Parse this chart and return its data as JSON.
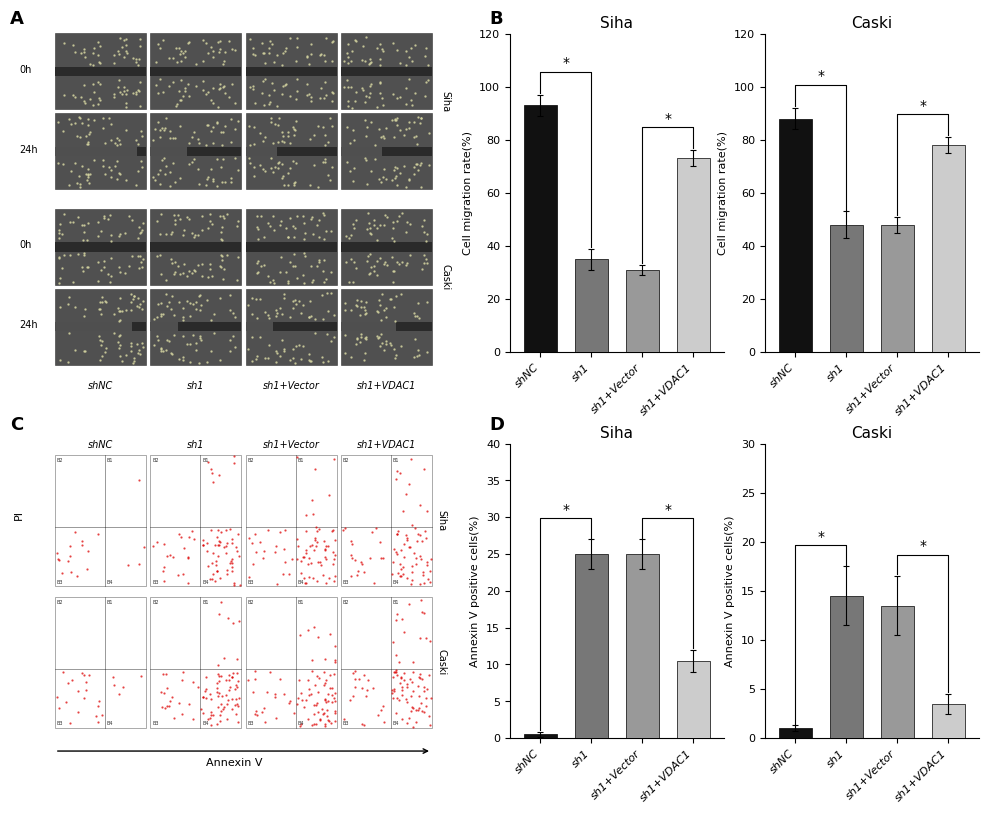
{
  "panel_B_siha": {
    "title": "Siha",
    "categories": [
      "shNC",
      "sh1",
      "sh1+Vector",
      "sh1+VDAC1"
    ],
    "values": [
      93,
      35,
      31,
      73
    ],
    "errors": [
      4,
      4,
      2,
      3
    ],
    "colors": [
      "#111111",
      "#777777",
      "#999999",
      "#cccccc"
    ],
    "ylabel": "Cell migration rate(%)",
    "ylim": [
      0,
      120
    ],
    "yticks": [
      0,
      20,
      40,
      60,
      80,
      100,
      120
    ],
    "sig1": [
      0,
      1
    ],
    "sig2": [
      2,
      3
    ]
  },
  "panel_B_caski": {
    "title": "Caski",
    "categories": [
      "shNC",
      "sh1",
      "sh1+Vector",
      "sh1+VDAC1"
    ],
    "values": [
      88,
      48,
      48,
      78
    ],
    "errors": [
      4,
      5,
      3,
      3
    ],
    "colors": [
      "#111111",
      "#777777",
      "#999999",
      "#cccccc"
    ],
    "ylabel": "Cell migration rate(%)",
    "ylim": [
      0,
      120
    ],
    "yticks": [
      0,
      20,
      40,
      60,
      80,
      100,
      120
    ],
    "sig1": [
      0,
      1
    ],
    "sig2": [
      2,
      3
    ]
  },
  "panel_D_siha": {
    "title": "Siha",
    "categories": [
      "shNC",
      "sh1",
      "sh1+Vector",
      "sh1+VDAC1"
    ],
    "values": [
      0.5,
      25,
      25,
      10.5
    ],
    "errors": [
      0.3,
      2,
      2,
      1.5
    ],
    "colors": [
      "#111111",
      "#777777",
      "#999999",
      "#cccccc"
    ],
    "ylabel": "Annexin V positive cells(%)",
    "ylim": [
      0,
      40
    ],
    "yticks": [
      0,
      5,
      10,
      15,
      20,
      25,
      30,
      35,
      40
    ],
    "sig1": [
      0,
      1
    ],
    "sig2": [
      2,
      3
    ]
  },
  "panel_D_caski": {
    "title": "Caski",
    "categories": [
      "shNC",
      "sh1",
      "sh1+Vector",
      "sh1+VDAC1"
    ],
    "values": [
      1.0,
      14.5,
      13.5,
      3.5
    ],
    "errors": [
      0.3,
      3,
      3,
      1
    ],
    "colors": [
      "#111111",
      "#777777",
      "#999999",
      "#cccccc"
    ],
    "ylabel": "Annexin V positive cells(%)",
    "ylim": [
      0,
      30
    ],
    "yticks": [
      0,
      5,
      10,
      15,
      20,
      25,
      30
    ],
    "sig1": [
      0,
      1
    ],
    "sig2": [
      2,
      3
    ]
  },
  "label_A": "A",
  "label_B": "B",
  "label_C": "C",
  "label_D": "D",
  "panel_A_row_labels": [
    "0h",
    "24h",
    "0h",
    "24h"
  ],
  "panel_A_col_labels": [
    "shNC",
    "sh1",
    "sh1+Vector",
    "sh1+VDAC1"
  ],
  "panel_A_group_labels_right": [
    "Siha",
    "Caski"
  ],
  "panel_C_xlabel": "Annexin V",
  "panel_C_ylabel": "PI",
  "panel_C_row_labels": [
    "Siha",
    "Caski"
  ],
  "panel_C_col_labels": [
    "shNC",
    "sh1",
    "sh1+Vector",
    "sh1+VDAC1"
  ],
  "bg_color": "#ffffff",
  "bar_width": 0.65,
  "tick_fontsize": 8,
  "label_fontsize": 13,
  "title_fontsize": 11,
  "axis_label_fontsize": 8
}
